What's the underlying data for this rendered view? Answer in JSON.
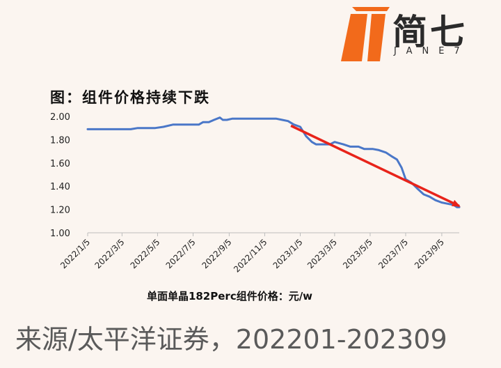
{
  "logo": {
    "cn": "简七",
    "en": "JANE7"
  },
  "title": "图：组件价格持续下跌",
  "chart_data": {
    "type": "line",
    "xlabel": "单面单晶182Perc组件价格：元/w",
    "ylim": [
      1.0,
      2.0
    ],
    "yticks": [
      "2.00",
      "1.80",
      "1.60",
      "1.40",
      "1.20",
      "1.00"
    ],
    "xtick_labels": [
      "2022/1/5",
      "2022/3/5",
      "2022/5/5",
      "2022/7/5",
      "2022/9/5",
      "2022/11/5",
      "2023/1/5",
      "2023/3/5",
      "2023/5/5",
      "2023/7/5",
      "2023/9/5"
    ],
    "grid": false,
    "trend_arrow": {
      "color": "#e8231a",
      "from": [
        "2022/12/20",
        1.92
      ],
      "to": [
        "2023/10/5",
        1.23
      ]
    },
    "series": [
      {
        "color": "#4a77c8",
        "points": [
          [
            "2022/1/5",
            1.89
          ],
          [
            "2022/2/1",
            1.89
          ],
          [
            "2022/3/1",
            1.89
          ],
          [
            "2022/3/20",
            1.89
          ],
          [
            "2022/4/1",
            1.9
          ],
          [
            "2022/4/15",
            1.9
          ],
          [
            "2022/5/1",
            1.9
          ],
          [
            "2022/5/15",
            1.91
          ],
          [
            "2022/6/1",
            1.93
          ],
          [
            "2022/6/15",
            1.93
          ],
          [
            "2022/7/1",
            1.93
          ],
          [
            "2022/7/15",
            1.93
          ],
          [
            "2022/7/22",
            1.95
          ],
          [
            "2022/8/1",
            1.95
          ],
          [
            "2022/8/10",
            1.97
          ],
          [
            "2022/8/20",
            1.99
          ],
          [
            "2022/8/25",
            1.97
          ],
          [
            "2022/9/1",
            1.97
          ],
          [
            "2022/9/10",
            1.98
          ],
          [
            "2022/10/1",
            1.98
          ],
          [
            "2022/11/1",
            1.98
          ],
          [
            "2022/11/25",
            1.98
          ],
          [
            "2022/12/5",
            1.97
          ],
          [
            "2022/12/15",
            1.96
          ],
          [
            "2022/12/25",
            1.93
          ],
          [
            "2023/1/5",
            1.91
          ],
          [
            "2023/1/15",
            1.83
          ],
          [
            "2023/1/25",
            1.78
          ],
          [
            "2023/2/1",
            1.76
          ],
          [
            "2023/2/10",
            1.76
          ],
          [
            "2023/2/25",
            1.76
          ],
          [
            "2023/3/5",
            1.78
          ],
          [
            "2023/3/20",
            1.76
          ],
          [
            "2023/4/1",
            1.74
          ],
          [
            "2023/4/15",
            1.74
          ],
          [
            "2023/4/25",
            1.72
          ],
          [
            "2023/5/10",
            1.72
          ],
          [
            "2023/5/20",
            1.71
          ],
          [
            "2023/6/1",
            1.69
          ],
          [
            "2023/6/10",
            1.66
          ],
          [
            "2023/6/20",
            1.63
          ],
          [
            "2023/6/28",
            1.56
          ],
          [
            "2023/7/5",
            1.46
          ],
          [
            "2023/7/15",
            1.43
          ],
          [
            "2023/7/25",
            1.38
          ],
          [
            "2023/8/5",
            1.33
          ],
          [
            "2023/8/15",
            1.31
          ],
          [
            "2023/8/25",
            1.28
          ],
          [
            "2023/9/5",
            1.26
          ],
          [
            "2023/9/15",
            1.25
          ],
          [
            "2023/9/25",
            1.24
          ],
          [
            "2023/10/1",
            1.22
          ],
          [
            "2023/10/5",
            1.22
          ]
        ]
      }
    ]
  },
  "source": "来源/太平洋证券，202201-202309"
}
